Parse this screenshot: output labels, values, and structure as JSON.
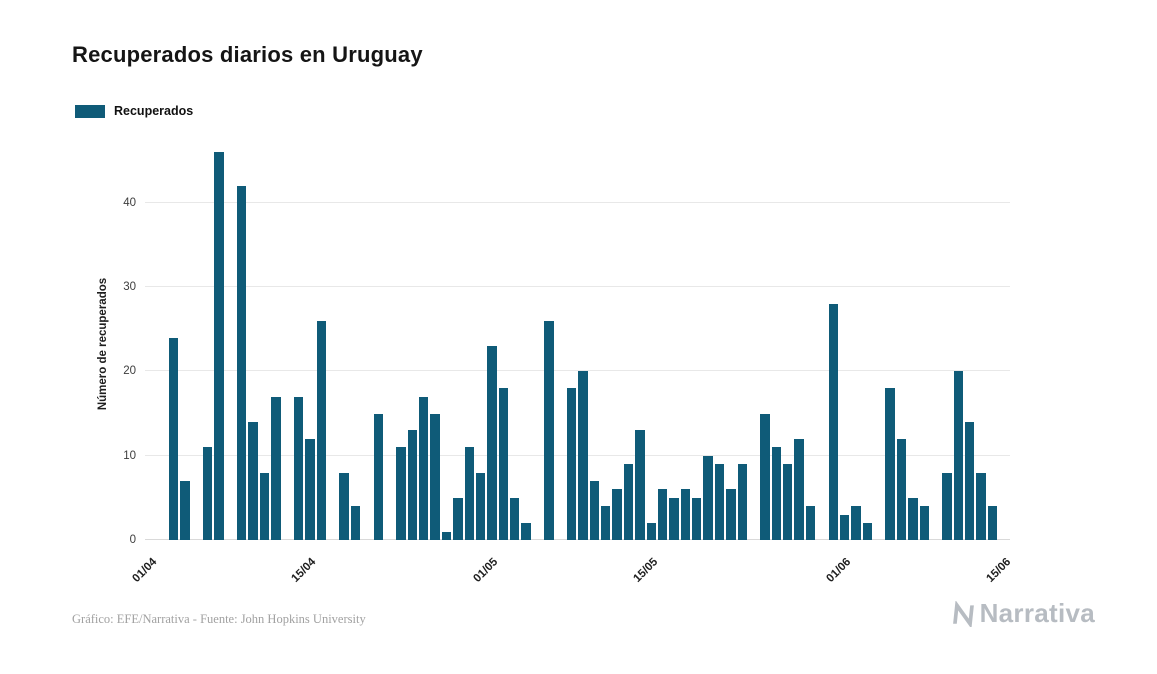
{
  "title": "Recuperados diarios en Uruguay",
  "legend": {
    "label": "Recuperados"
  },
  "footer": {
    "credit": "Gráfico: EFE/Narrativa - Fuente: John Hopkins University",
    "brand": "Narrativa"
  },
  "colors": {
    "bar": "#0f5b78",
    "grid": "#e8e8e8",
    "tick_text": "#3d3d3d",
    "footer_text": "#a1a1a1",
    "brand_text": "#b7bcc2"
  },
  "chart_data": {
    "type": "bar",
    "title": "Recuperados diarios en Uruguay",
    "xlabel": "",
    "ylabel": "Número de recuperados",
    "ylim": [
      0,
      46.5
    ],
    "y_ticks": [
      0,
      10,
      20,
      30,
      40
    ],
    "x_ticks": [
      "01/04",
      "15/04",
      "01/05",
      "15/05",
      "01/06",
      "15/06"
    ],
    "grid": true,
    "legend_position": "top-left",
    "bar_color": "#0f5b78",
    "x": [
      "01/04",
      "02/04",
      "03/04",
      "04/04",
      "05/04",
      "06/04",
      "07/04",
      "08/04",
      "09/04",
      "10/04",
      "11/04",
      "12/04",
      "13/04",
      "14/04",
      "15/04",
      "16/04",
      "17/04",
      "18/04",
      "19/04",
      "20/04",
      "21/04",
      "22/04",
      "23/04",
      "24/04",
      "25/04",
      "26/04",
      "27/04",
      "28/04",
      "29/04",
      "30/04",
      "01/05",
      "02/05",
      "03/05",
      "04/05",
      "05/05",
      "06/05",
      "07/05",
      "08/05",
      "09/05",
      "10/05",
      "11/05",
      "12/05",
      "13/05",
      "14/05",
      "15/05",
      "16/05",
      "17/05",
      "18/05",
      "19/05",
      "20/05",
      "21/05",
      "22/05",
      "23/05",
      "24/05",
      "25/05",
      "26/05",
      "27/05",
      "28/05",
      "29/05",
      "30/05",
      "31/05",
      "01/06",
      "02/06",
      "03/06",
      "04/06",
      "05/06",
      "06/06",
      "07/06",
      "08/06",
      "09/06",
      "10/06",
      "11/06",
      "12/06",
      "13/06",
      "14/06",
      "15/06"
    ],
    "series": [
      {
        "name": "Recuperados",
        "values": [
          0,
          0,
          24,
          7,
          0,
          11,
          46,
          0,
          42,
          14,
          8,
          17,
          0,
          17,
          12,
          26,
          0,
          8,
          4,
          0,
          15,
          0,
          11,
          13,
          17,
          15,
          1,
          5,
          11,
          8,
          23,
          18,
          5,
          2,
          0,
          26,
          0,
          18,
          20,
          7,
          4,
          6,
          9,
          13,
          2,
          6,
          5,
          6,
          5,
          10,
          9,
          6,
          9,
          0,
          15,
          11,
          9,
          12,
          4,
          0,
          28,
          3,
          4,
          2,
          0,
          18,
          12,
          5,
          4,
          0,
          8,
          20,
          14,
          8,
          4,
          0
        ]
      }
    ]
  }
}
